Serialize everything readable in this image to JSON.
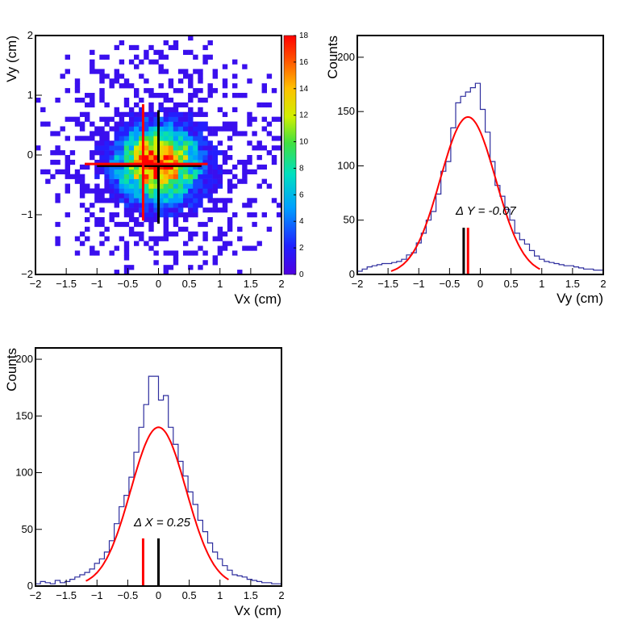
{
  "colors": {
    "histogram": "#2e2e9e",
    "fit": "#ff0000",
    "marker_red": "#ff0000",
    "marker_black": "#000000",
    "frame": "#000000"
  },
  "chart_data": [
    {
      "type": "heatmap",
      "title": "",
      "xlabel": "Vx (cm)",
      "ylabel": "Vy (cm)",
      "xlim": [
        -2,
        2
      ],
      "ylim": [
        -2,
        2
      ],
      "x_ticks": [
        "−2",
        "−1.5",
        "−1",
        "−0.5",
        "0",
        "0.5",
        "1",
        "1.5",
        "2"
      ],
      "y_ticks": [
        "−2",
        "−1",
        "0",
        "1",
        "2"
      ],
      "colorbar": {
        "range": [
          0,
          18
        ],
        "ticks": [
          "0",
          "2",
          "4",
          "6",
          "8",
          "10",
          "12",
          "14",
          "16",
          "18"
        ]
      },
      "bins": 50,
      "distribution": {
        "mean_x": 0.0,
        "mean_y": -0.15,
        "sigma_x": 0.42,
        "sigma_y": 0.38,
        "peak_count": 18
      },
      "red_cross": {
        "x_center": -0.25,
        "y_center": -0.15,
        "x_range": [
          -1.2,
          0.8
        ],
        "y_range": [
          -1.1,
          0.85
        ]
      },
      "black_cross": {
        "x_center": 0.0,
        "y_center": -0.18,
        "x_range": [
          -1.0,
          0.7
        ],
        "y_range": [
          -1.15,
          0.75
        ]
      }
    },
    {
      "type": "line",
      "title": "",
      "xlabel": "Vy (cm)",
      "ylabel": "Counts",
      "xlim": [
        -2,
        2
      ],
      "ylim": [
        0,
        220
      ],
      "x_ticks": [
        "−2",
        "−1.5",
        "−1",
        "−0.5",
        "0",
        "0.5",
        "1",
        "1.5",
        "2"
      ],
      "y_ticks": [
        "0",
        "50",
        "100",
        "150",
        "200"
      ],
      "bin_edges_start": -2.0,
      "bin_width": 0.08,
      "series": [
        {
          "values": [
            3,
            5,
            7,
            8,
            9,
            10,
            10,
            11,
            12,
            14,
            18,
            20,
            29,
            38,
            50,
            58,
            74,
            95,
            104,
            135,
            158,
            164,
            168,
            172,
            176,
            152,
            131,
            104,
            82,
            72,
            60,
            50,
            38,
            32,
            28,
            22,
            17,
            14,
            12,
            11,
            10,
            9,
            8,
            8,
            7,
            6,
            5,
            5,
            4,
            4
          ]
        }
      ],
      "fit": {
        "type": "gaussian",
        "amplitude": 145,
        "mean": -0.2,
        "sigma": 0.45,
        "range": [
          -1.45,
          0.98
        ]
      },
      "markers": [
        {
          "color": "black",
          "x": -0.27,
          "height": 43
        },
        {
          "color": "red",
          "x": -0.2,
          "height": 43
        }
      ],
      "annotation": "Δ Y = -0.07"
    },
    {
      "type": "line",
      "title": "",
      "xlabel": "Vx (cm)",
      "ylabel": "Counts",
      "xlim": [
        -2,
        2
      ],
      "ylim": [
        0,
        210
      ],
      "x_ticks": [
        "−2",
        "−1.5",
        "−1",
        "−0.5",
        "0",
        "0.5",
        "1",
        "1.5",
        "2"
      ],
      "y_ticks": [
        "0",
        "50",
        "100",
        "150",
        "200"
      ],
      "bin_edges_start": -2.0,
      "bin_width": 0.08,
      "series": [
        {
          "values": [
            2,
            4,
            3,
            2,
            5,
            3,
            4,
            6,
            8,
            10,
            12,
            15,
            20,
            24,
            30,
            40,
            55,
            70,
            80,
            96,
            118,
            140,
            160,
            185,
            185,
            164,
            168,
            140,
            125,
            110,
            97,
            83,
            72,
            58,
            48,
            38,
            30,
            24,
            18,
            14,
            10,
            9,
            8,
            6,
            5,
            4,
            3,
            3,
            2,
            2
          ]
        }
      ],
      "fit": {
        "type": "gaussian",
        "amplitude": 140,
        "mean": 0.0,
        "sigma": 0.45,
        "range": [
          -1.18,
          1.15
        ]
      },
      "markers": [
        {
          "color": "red",
          "x": -0.25,
          "height": 42
        },
        {
          "color": "black",
          "x": 0.0,
          "height": 42
        }
      ],
      "annotation": "Δ X = 0.25"
    }
  ]
}
